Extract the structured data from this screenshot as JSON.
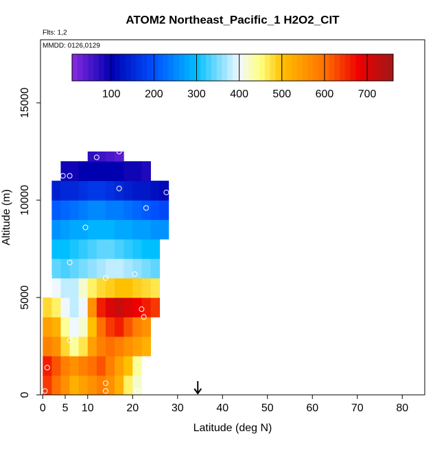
{
  "chart_data": {
    "type": "curtain",
    "title": "ATOM2 Northeast_Pacific_1 H2O2_CIT",
    "subtitle": "Flts: 1,2",
    "annotation": "MMDD: 0126,0129",
    "x_label": "Latitude (deg N)",
    "y_label": "Altitude (m)",
    "xlim": [
      -0.5,
      85
    ],
    "ylim": [
      0,
      18240
    ],
    "xticks": [
      0,
      5,
      10,
      20,
      30,
      40,
      50,
      60,
      70,
      80
    ],
    "yticks": [
      0,
      5000,
      10000,
      15000
    ],
    "x_bins": [
      0,
      2,
      4,
      6,
      8,
      10,
      12,
      14,
      16,
      18,
      20,
      22,
      24,
      26,
      28
    ],
    "y_bins": [
      0,
      1000,
      2000,
      3000,
      4000,
      5000,
      6000,
      7000,
      8000,
      9000,
      10000,
      11000,
      12000,
      12500
    ],
    "values": [
      [
        640,
        600,
        560,
        520,
        540,
        560,
        580,
        560,
        520,
        460,
        420,
        null,
        null,
        null
      ],
      [
        660,
        620,
        580,
        560,
        580,
        600,
        620,
        580,
        540,
        500,
        440,
        null,
        null,
        null
      ],
      [
        580,
        560,
        480,
        440,
        470,
        540,
        580,
        600,
        580,
        560,
        540,
        520,
        null,
        null
      ],
      [
        540,
        520,
        440,
        400,
        420,
        500,
        600,
        640,
        660,
        620,
        580,
        560,
        null,
        null
      ],
      [
        480,
        460,
        400,
        380,
        400,
        560,
        660,
        700,
        720,
        700,
        680,
        660,
        640,
        null
      ],
      [
        null,
        400,
        380,
        380,
        420,
        460,
        480,
        490,
        500,
        500,
        490,
        480,
        470,
        null
      ],
      [
        null,
        340,
        330,
        340,
        350,
        360,
        370,
        380,
        380,
        370,
        360,
        350,
        340,
        null
      ],
      [
        null,
        300,
        300,
        310,
        320,
        330,
        340,
        340,
        330,
        320,
        310,
        300,
        300,
        null
      ],
      [
        null,
        260,
        270,
        280,
        280,
        290,
        290,
        290,
        280,
        280,
        270,
        270,
        260,
        260
      ],
      [
        null,
        210,
        220,
        230,
        240,
        250,
        250,
        240,
        240,
        230,
        220,
        210,
        200,
        190
      ],
      [
        null,
        140,
        150,
        150,
        160,
        170,
        170,
        160,
        150,
        140,
        130,
        130,
        120,
        110
      ],
      [
        null,
        null,
        90,
        90,
        100,
        100,
        100,
        100,
        100,
        90,
        90,
        80,
        null,
        null
      ],
      [
        null,
        null,
        null,
        null,
        null,
        70,
        60,
        50,
        40,
        null,
        null,
        null,
        null,
        null
      ]
    ],
    "points": {
      "x": [
        4.5,
        6,
        12,
        17,
        17,
        27.5,
        23,
        9.5,
        6,
        1.5,
        14,
        20.5,
        22,
        22.5,
        6,
        1,
        14,
        14,
        21,
        0.5
      ],
      "y": [
        11250,
        11250,
        12200,
        12500,
        10600,
        10400,
        9600,
        8600,
        6800,
        6100,
        6000,
        6200,
        4400,
        4000,
        2800,
        1400,
        600,
        200,
        200,
        200
      ]
    },
    "marker_x": 34.5,
    "colorbar_lim": [
      8,
      761
    ],
    "colorbar_ticks": [
      100,
      200,
      300,
      400,
      500,
      600,
      700
    ],
    "colorscale": [
      [
        8,
        "#8a2be2"
      ],
      [
        100,
        "#0000b0"
      ],
      [
        200,
        "#0050ff"
      ],
      [
        300,
        "#00bfff"
      ],
      [
        400,
        "#f0f8ff"
      ],
      [
        450,
        "#ffff80"
      ],
      [
        500,
        "#ffc000"
      ],
      [
        600,
        "#ff7000"
      ],
      [
        680,
        "#ee0000"
      ],
      [
        761,
        "#a01818"
      ]
    ]
  }
}
